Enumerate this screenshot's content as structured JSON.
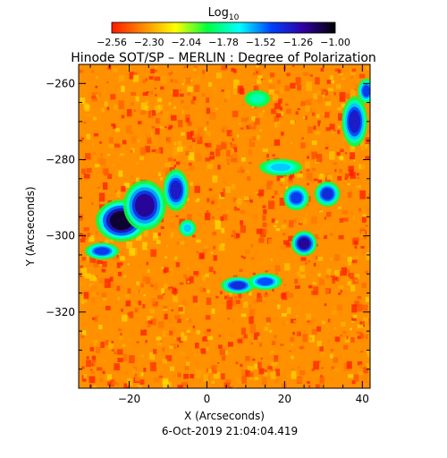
{
  "chart_data": {
    "type": "heatmap",
    "title": "Hinode SOT/SP – MERLIN : Degree of Polarization",
    "colorbar": {
      "label_base": "Log",
      "label_subscript": "10",
      "ticks": [
        "−2.56",
        "−2.30",
        "−2.04",
        "−1.78",
        "−1.52",
        "−1.26",
        "−1.00"
      ],
      "range": [
        -2.56,
        -1.0
      ],
      "colors": [
        "#ff1a00",
        "#ff8c00",
        "#ffff00",
        "#00ff40",
        "#00ffff",
        "#0040ff",
        "#3000a0",
        "#000000"
      ]
    },
    "xlabel": "X (Arcseconds)",
    "ylabel": "Y (Arcseconds)",
    "xlim": [
      -33,
      42
    ],
    "ylim": [
      -340,
      -255
    ],
    "xticks": [
      {
        "value": -20,
        "label": "−20"
      },
      {
        "value": 0,
        "label": "0"
      },
      {
        "value": 20,
        "label": "20"
      },
      {
        "value": 40,
        "label": "40"
      }
    ],
    "yticks": [
      {
        "value": -260,
        "label": "−260"
      },
      {
        "value": -280,
        "label": "−280"
      },
      {
        "value": -300,
        "label": "−300"
      },
      {
        "value": -320,
        "label": "−320"
      }
    ],
    "background_level": -2.35,
    "strong_regions": [
      {
        "x": -22,
        "y": -296,
        "rx": 6,
        "ry": 5,
        "level": -1.05
      },
      {
        "x": -16,
        "y": -292,
        "rx": 5,
        "ry": 6,
        "level": -1.2
      },
      {
        "x": -8,
        "y": -288,
        "rx": 3,
        "ry": 5,
        "level": -1.3
      },
      {
        "x": -27,
        "y": -304,
        "rx": 4,
        "ry": 2,
        "level": -1.4
      },
      {
        "x": 25,
        "y": -302,
        "rx": 3,
        "ry": 3,
        "level": -1.2
      },
      {
        "x": 23,
        "y": -290,
        "rx": 3,
        "ry": 3,
        "level": -1.4
      },
      {
        "x": 31,
        "y": -289,
        "rx": 3,
        "ry": 3,
        "level": -1.35
      },
      {
        "x": 38,
        "y": -270,
        "rx": 3,
        "ry": 6,
        "level": -1.3
      },
      {
        "x": 41,
        "y": -262,
        "rx": 2,
        "ry": 3,
        "level": -1.4
      },
      {
        "x": 8,
        "y": -313,
        "rx": 4,
        "ry": 2,
        "level": -1.35
      },
      {
        "x": 15,
        "y": -312,
        "rx": 4,
        "ry": 2,
        "level": -1.45
      },
      {
        "x": 19,
        "y": -282,
        "rx": 5,
        "ry": 2,
        "level": -1.6
      },
      {
        "x": -5,
        "y": -298,
        "rx": 2,
        "ry": 2,
        "level": -1.6
      },
      {
        "x": 13,
        "y": -264,
        "rx": 3,
        "ry": 2,
        "level": -1.75
      }
    ],
    "timestamp": "6-Oct-2019 21:04:04.419"
  }
}
